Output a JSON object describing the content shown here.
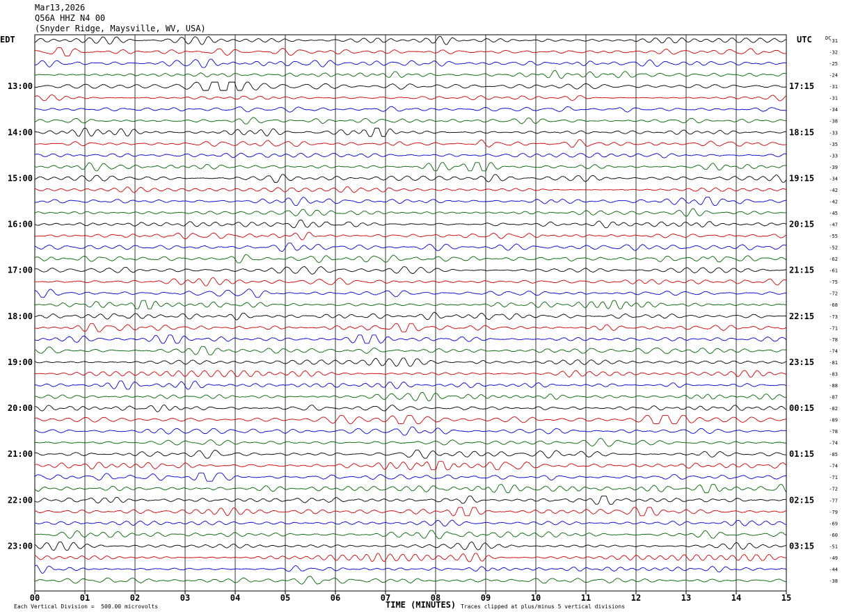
{
  "header": {
    "date": "Mar13,2026",
    "station": "Q56A HHZ N4 00",
    "location": "(Snyder Ridge, Maysville, WV, USA)"
  },
  "left_axis_label": "EDT",
  "right_axis_label": "UTC",
  "dc_label": "DC",
  "footer": {
    "scale": "Each Vertical Division =  500.00 microvolts",
    "clip": "Traces clipped at plus/minus 5 vertical divisions",
    "xtitle": "TIME (MINUTES)"
  },
  "colors": {
    "trace_cycle": [
      "#000000",
      "#cc0000",
      "#0000cc",
      "#006400"
    ],
    "grid": "#000000"
  },
  "chart_data": {
    "type": "line",
    "title": "Q56A HHZ N4 00",
    "xlabel": "TIME (MINUTES)",
    "ylabel": "",
    "xlim": [
      0,
      15
    ],
    "x_ticks": [
      "00",
      "01",
      "02",
      "03",
      "04",
      "05",
      "06",
      "07",
      "08",
      "09",
      "10",
      "11",
      "12",
      "13",
      "14",
      "15"
    ],
    "trace_count": 48,
    "traces_per_hour": 4,
    "left_hour_labels": [
      {
        "trace": 4,
        "label": "13:00"
      },
      {
        "trace": 8,
        "label": "14:00"
      },
      {
        "trace": 12,
        "label": "15:00"
      },
      {
        "trace": 16,
        "label": "16:00"
      },
      {
        "trace": 20,
        "label": "17:00"
      },
      {
        "trace": 24,
        "label": "18:00"
      },
      {
        "trace": 28,
        "label": "19:00"
      },
      {
        "trace": 32,
        "label": "20:00"
      },
      {
        "trace": 36,
        "label": "21:00"
      },
      {
        "trace": 40,
        "label": "22:00"
      },
      {
        "trace": 44,
        "label": "23:00"
      }
    ],
    "right_hour_labels": [
      {
        "trace": 4,
        "label": "17:15"
      },
      {
        "trace": 8,
        "label": "18:15"
      },
      {
        "trace": 12,
        "label": "19:15"
      },
      {
        "trace": 16,
        "label": "20:15"
      },
      {
        "trace": 20,
        "label": "21:15"
      },
      {
        "trace": 24,
        "label": "22:15"
      },
      {
        "trace": 28,
        "label": "23:15"
      },
      {
        "trace": 32,
        "label": "00:15"
      },
      {
        "trace": 36,
        "label": "01:15"
      },
      {
        "trace": 40,
        "label": "02:15"
      },
      {
        "trace": 44,
        "label": "03:15"
      }
    ],
    "dc_offsets": [
      "-31",
      "-32",
      "-25",
      "-24",
      "-31",
      "-31",
      "-34",
      "-38",
      "-33",
      "-35",
      "-33",
      "-39",
      "-34",
      "-42",
      "-42",
      "-45",
      "-47",
      "-55",
      "-52",
      "-62",
      "-61",
      "-75",
      "-72",
      "-68",
      "-73",
      "-71",
      "-78",
      "-74",
      "-81",
      "-83",
      "-88",
      "-87",
      "-82",
      "-89",
      "-78",
      "-74",
      "-85",
      "-74",
      "-71",
      "-72",
      "-77",
      "-79",
      "-69",
      "-60",
      "-51",
      "-49",
      "-44",
      "-38"
    ]
  }
}
